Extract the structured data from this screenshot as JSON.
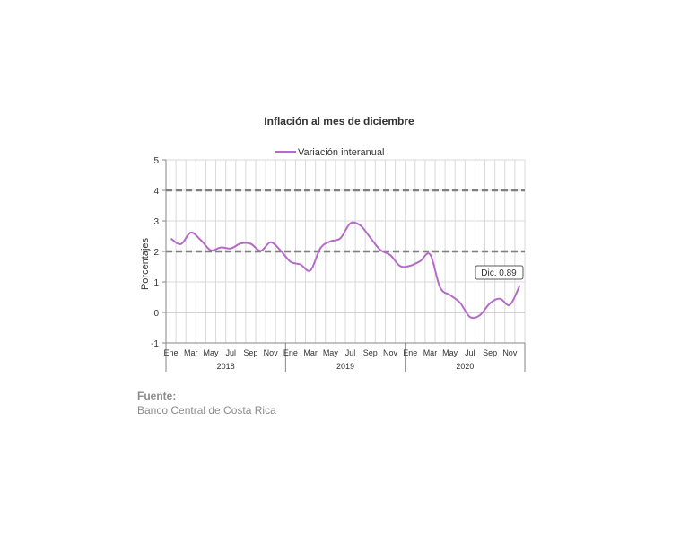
{
  "chart_data": {
    "type": "line",
    "title": "Inflación al mes de diciembre",
    "xlabel": "",
    "ylabel": "Porcentajes",
    "ylim": [
      -1,
      5
    ],
    "yticks": [
      -1,
      0,
      1,
      2,
      3,
      4,
      5
    ],
    "grid": true,
    "legend_position": "top",
    "month_labels": [
      "Ene",
      "Mar",
      "May",
      "Jul",
      "Sep",
      "Nov"
    ],
    "years": [
      "2018",
      "2019",
      "2020"
    ],
    "reference_lines": [
      2,
      4
    ],
    "series": [
      {
        "name": "Variación interanual",
        "color": "#b56bc8",
        "values": [
          2.42,
          2.24,
          2.62,
          2.37,
          2.04,
          2.13,
          2.1,
          2.26,
          2.25,
          2.02,
          2.3,
          2.03,
          1.66,
          1.57,
          1.38,
          2.11,
          2.33,
          2.43,
          2.92,
          2.85,
          2.45,
          2.05,
          1.88,
          1.52,
          1.53,
          1.68,
          1.9,
          0.82,
          0.57,
          0.32,
          -0.15,
          -0.09,
          0.3,
          0.45,
          0.25,
          0.89
        ]
      }
    ],
    "annotation": "Dic. 0.89",
    "reference_line_color": "#7f7f7f"
  },
  "source": {
    "label": "Fuente:",
    "name": "Banco Central de Costa Rica"
  }
}
